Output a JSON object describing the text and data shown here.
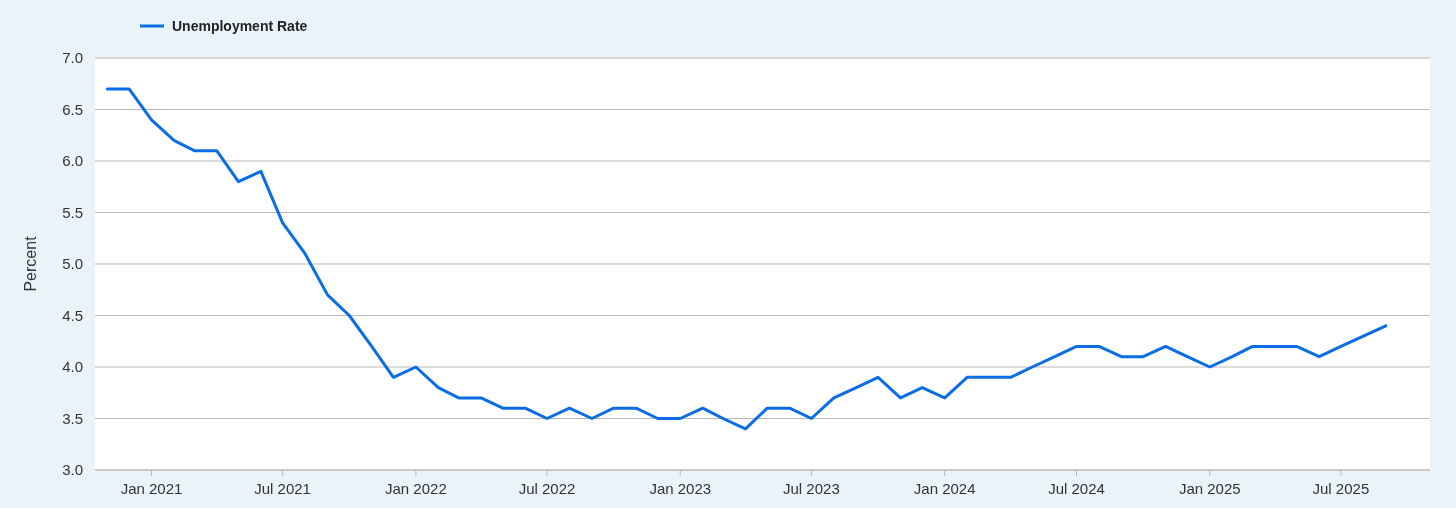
{
  "chart_data": {
    "type": "line",
    "ylabel": "Percent",
    "legend": "top left",
    "grid": "y",
    "line_style": "solid",
    "marker": "none",
    "x": [
      "2020-11",
      "2020-12",
      "2021-01",
      "2021-02",
      "2021-03",
      "2021-04",
      "2021-05",
      "2021-06",
      "2021-07",
      "2021-08",
      "2021-09",
      "2021-10",
      "2021-11",
      "2021-12",
      "2022-01",
      "2022-02",
      "2022-03",
      "2022-04",
      "2022-05",
      "2022-06",
      "2022-07",
      "2022-08",
      "2022-09",
      "2022-10",
      "2022-11",
      "2022-12",
      "2023-01",
      "2023-02",
      "2023-03",
      "2023-04",
      "2023-05",
      "2023-06",
      "2023-07",
      "2023-08",
      "2023-09",
      "2023-10",
      "2023-11",
      "2023-12",
      "2024-01",
      "2024-02",
      "2024-03",
      "2024-04",
      "2024-05",
      "2024-06",
      "2024-07",
      "2024-08",
      "2024-09",
      "2024-10",
      "2024-11",
      "2024-12",
      "2025-01",
      "2025-02",
      "2025-03",
      "2025-04",
      "2025-05",
      "2025-06",
      "2025-07",
      "2025-08",
      "2025-09"
    ],
    "series": [
      {
        "name": "Unemployment Rate",
        "color": "#0a6de6",
        "values": [
          6.7,
          6.7,
          6.4,
          6.2,
          6.1,
          6.1,
          5.8,
          5.9,
          5.4,
          5.1,
          4.7,
          4.5,
          4.2,
          3.9,
          4.0,
          3.8,
          3.7,
          3.7,
          3.6,
          3.6,
          3.5,
          3.6,
          3.5,
          3.6,
          3.6,
          3.5,
          3.5,
          3.6,
          3.5,
          3.4,
          3.6,
          3.6,
          3.5,
          3.7,
          3.8,
          3.9,
          3.7,
          3.8,
          3.7,
          3.9,
          3.9,
          3.9,
          4.0,
          4.1,
          4.2,
          4.2,
          4.1,
          4.1,
          4.2,
          4.1,
          4.0,
          4.1,
          4.2,
          4.2,
          4.2,
          4.1,
          4.2,
          4.3,
          4.4
        ]
      }
    ],
    "xlim": [
      "2020-10-15",
      "2025-11-01"
    ],
    "xticks": [
      {
        "value": "2021-01",
        "label": "Jan 2021"
      },
      {
        "value": "2021-07",
        "label": "Jul 2021"
      },
      {
        "value": "2022-01",
        "label": "Jan 2022"
      },
      {
        "value": "2022-07",
        "label": "Jul 2022"
      },
      {
        "value": "2023-01",
        "label": "Jan 2023"
      },
      {
        "value": "2023-07",
        "label": "Jul 2023"
      },
      {
        "value": "2024-01",
        "label": "Jan 2024"
      },
      {
        "value": "2024-07",
        "label": "Jul 2024"
      },
      {
        "value": "2025-01",
        "label": "Jan 2025"
      },
      {
        "value": "2025-07",
        "label": "Jul 2025"
      }
    ],
    "ylim": [
      3.0,
      7.0
    ],
    "yticks": [
      {
        "value": 3,
        "label": "3.0"
      },
      {
        "value": 3.5,
        "label": "3.5"
      },
      {
        "value": 4,
        "label": "4.0"
      },
      {
        "value": 4.5,
        "label": "4.5"
      },
      {
        "value": 5,
        "label": "5.0"
      },
      {
        "value": 5.5,
        "label": "5.5"
      },
      {
        "value": 6,
        "label": "6.0"
      },
      {
        "value": 6.5,
        "label": "6.5"
      },
      {
        "value": 7,
        "label": "7.0"
      }
    ]
  }
}
